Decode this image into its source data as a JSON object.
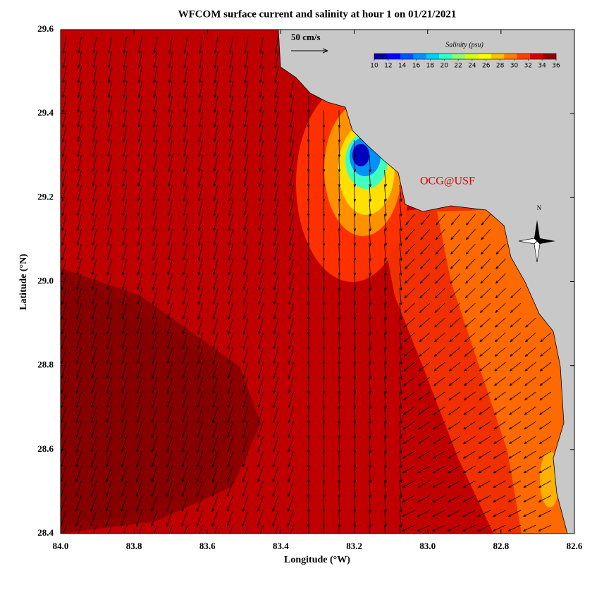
{
  "chart_data": {
    "type": "map",
    "title": "WFCOM surface current and salinity at hour 1 on 01/21/2021",
    "x_label": "Longitude (°W)",
    "y_label": "Latitude (°N)",
    "xlim": [
      84.0,
      82.6
    ],
    "ylim": [
      28.4,
      29.6
    ],
    "xticks": [
      {
        "value": 84,
        "label": "84.0"
      },
      83.8,
      83.6,
      83.4,
      83.2,
      {
        "value": 83,
        "label": "83.0"
      },
      82.8,
      82.6
    ],
    "yticks": [
      29.6,
      29.4,
      29.2,
      {
        "value": 29,
        "label": "29.0"
      },
      28.8,
      28.6,
      28.4
    ],
    "colorbar": {
      "label": "Salinity (psu)",
      "lim": [
        10,
        36
      ],
      "ticks": [
        10,
        12,
        14,
        16,
        18,
        20,
        22,
        24,
        26,
        28,
        30,
        32,
        34,
        36
      ],
      "colors": [
        "#0000a0",
        "#0000ff",
        "#0050ff",
        "#0090ff",
        "#00d0ff",
        "#30ffd0",
        "#90ff70",
        "#d0ff20",
        "#ffff00",
        "#ffc000",
        "#ff8000",
        "#ff4000",
        "#d00000",
        "#900000"
      ]
    },
    "scale_label": "50 cm/s",
    "credit": "OCG@USF",
    "compass_label": "N"
  }
}
